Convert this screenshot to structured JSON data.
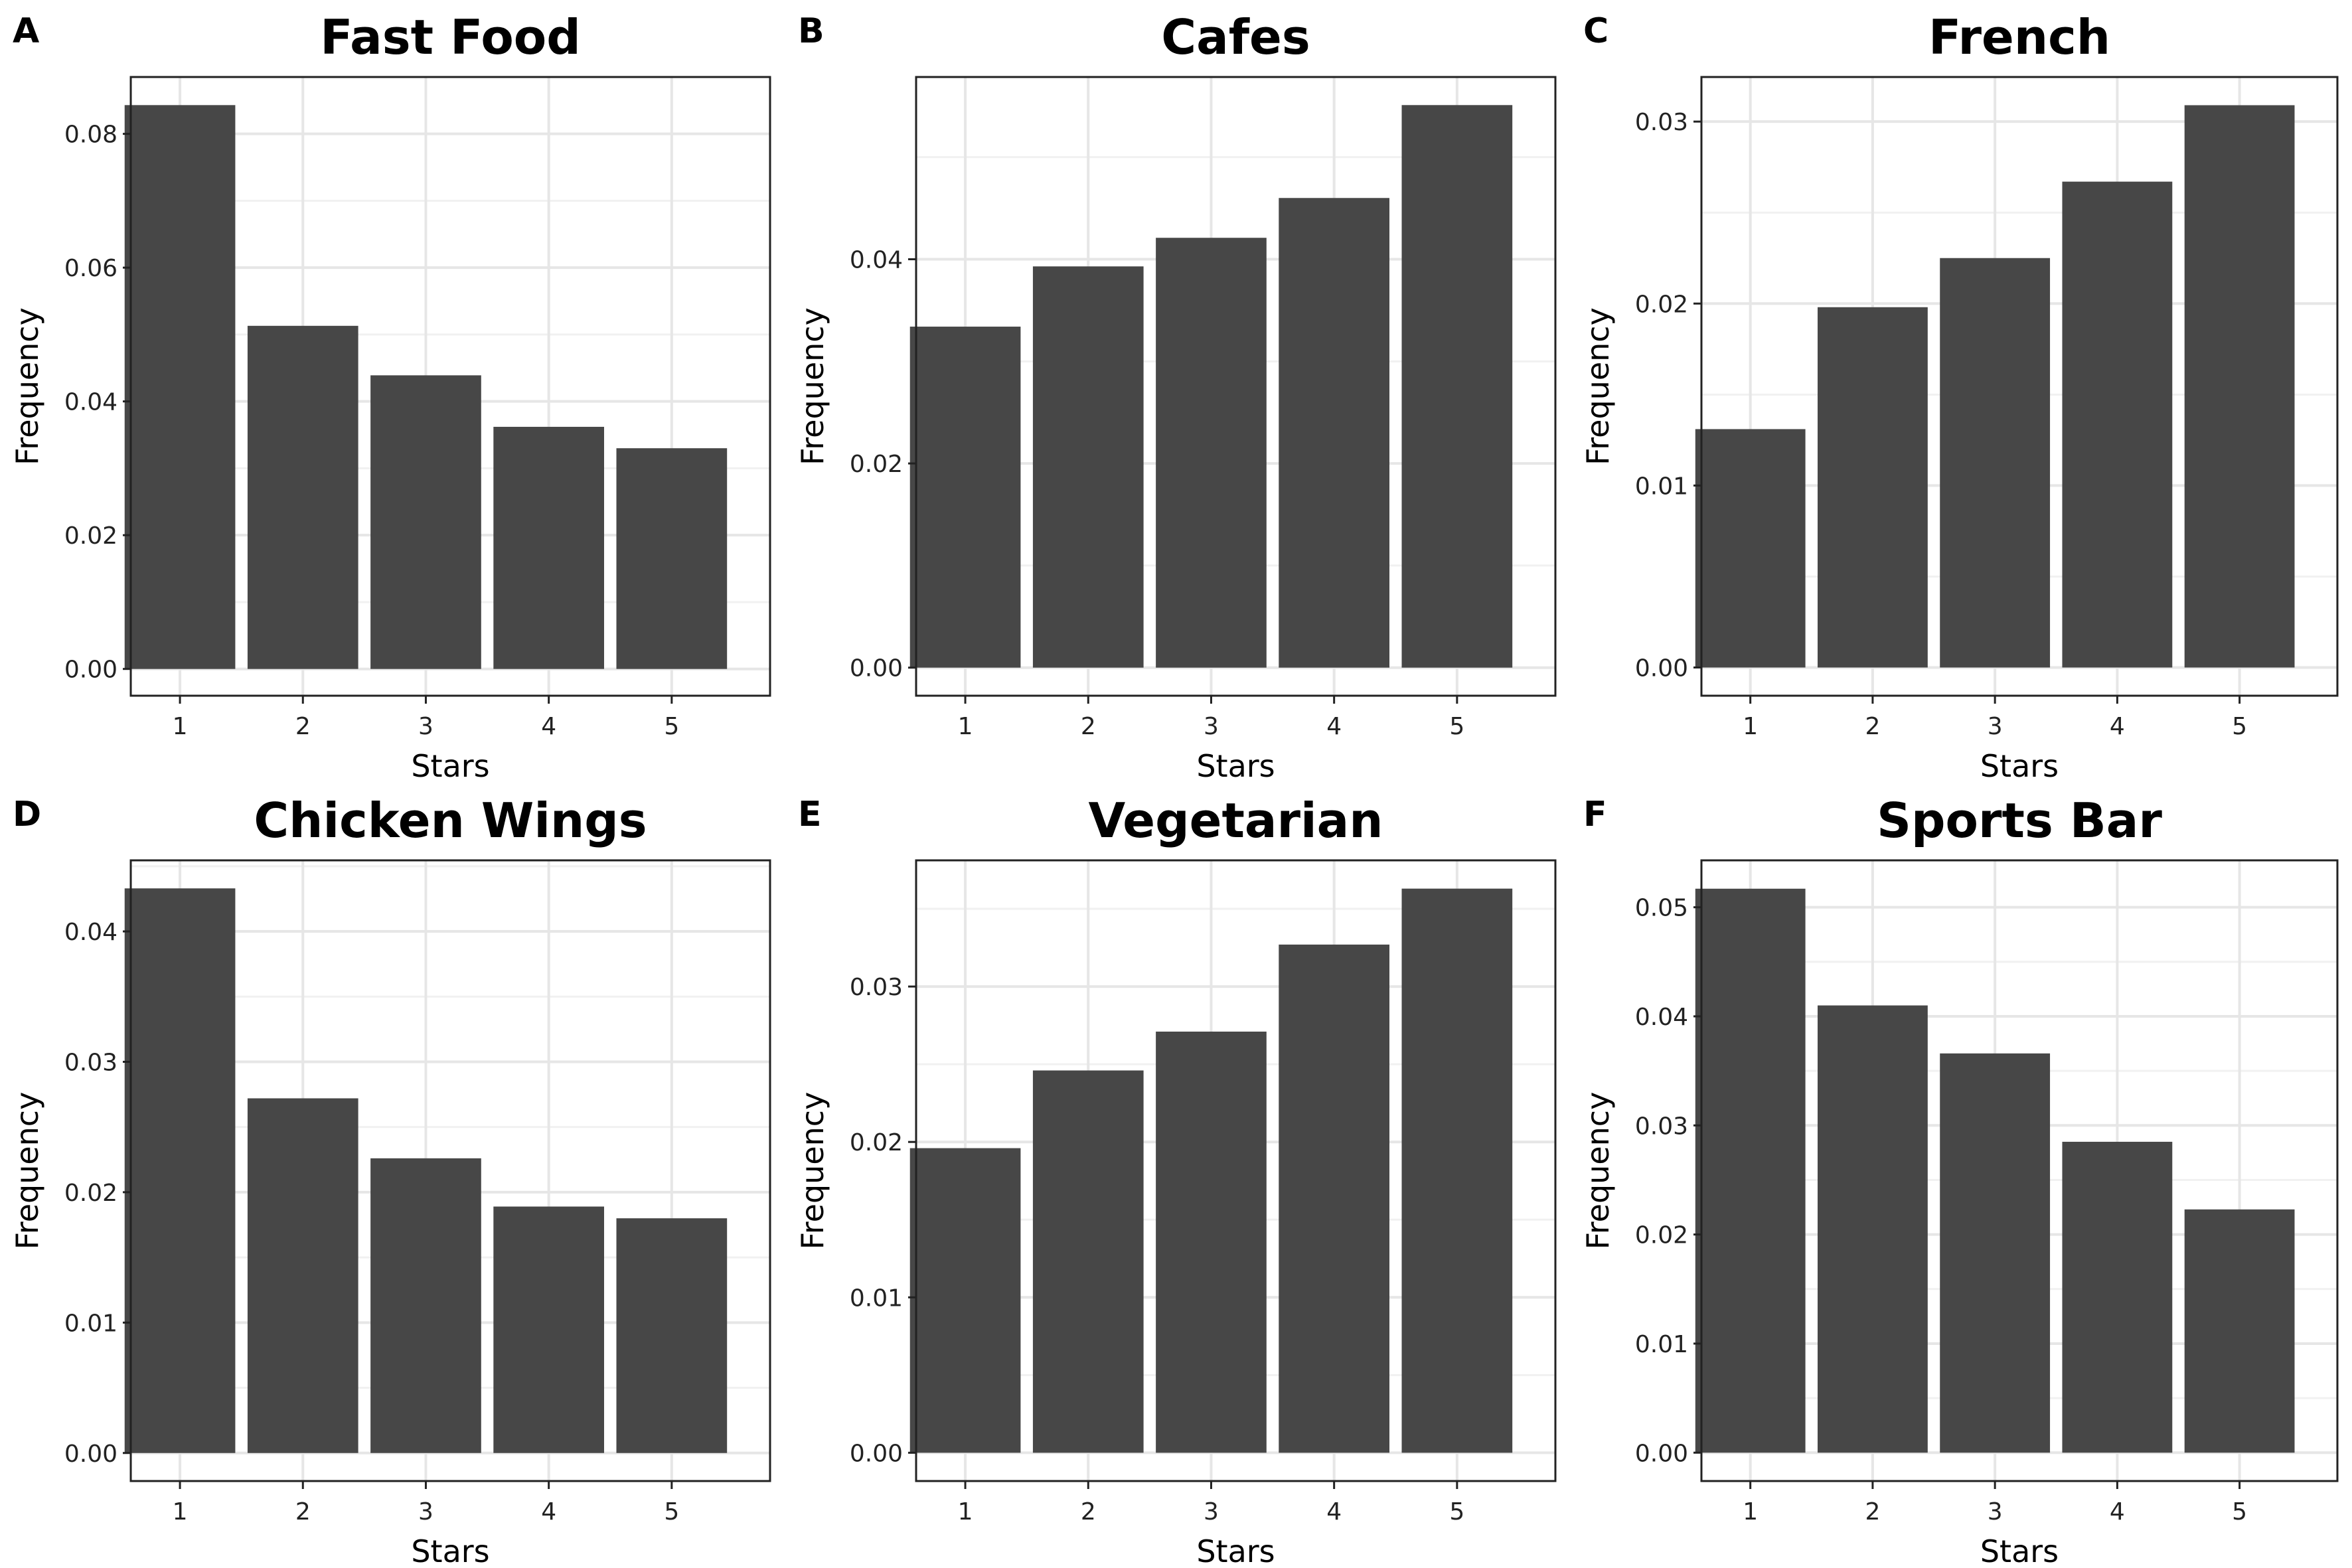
{
  "chart_data": [
    {
      "tag": "A",
      "type": "bar",
      "title": "Fast Food",
      "xlabel": "Stars",
      "ylabel": "Frequency",
      "categories": [
        "1",
        "2",
        "3",
        "4",
        "5"
      ],
      "values": [
        0.0843,
        0.0513,
        0.0439,
        0.0362,
        0.033
      ],
      "ylim": [
        -0.004,
        0.0885
      ],
      "yticks": [
        0.0,
        0.02,
        0.04,
        0.06,
        0.08
      ],
      "yticklabels": [
        "0.00",
        "0.02",
        "0.04",
        "0.06",
        "0.08"
      ],
      "grid": true,
      "bar_color": "#474747"
    },
    {
      "tag": "B",
      "type": "bar",
      "title": "Cafes",
      "xlabel": "Stars",
      "ylabel": "Frequency",
      "categories": [
        "1",
        "2",
        "3",
        "4",
        "5"
      ],
      "values": [
        0.0334,
        0.0393,
        0.0421,
        0.046,
        0.0551
      ],
      "ylim": [
        -0.00275,
        0.05785
      ],
      "yticks": [
        0.0,
        0.02,
        0.04
      ],
      "yticklabels": [
        "0.00",
        "0.02",
        "0.04"
      ],
      "grid": true,
      "bar_color": "#474747"
    },
    {
      "tag": "C",
      "type": "bar",
      "title": "French",
      "xlabel": "Stars",
      "ylabel": "Frequency",
      "categories": [
        "1",
        "2",
        "3",
        "4",
        "5"
      ],
      "values": [
        0.0131,
        0.0198,
        0.0225,
        0.0267,
        0.0309
      ],
      "ylim": [
        -0.00155,
        0.03245
      ],
      "yticks": [
        0.0,
        0.01,
        0.02,
        0.03
      ],
      "yticklabels": [
        "0.00",
        "0.01",
        "0.02",
        "0.03"
      ],
      "grid": true,
      "bar_color": "#474747"
    },
    {
      "tag": "D",
      "type": "bar",
      "title": "Chicken Wings",
      "xlabel": "Stars",
      "ylabel": "Frequency",
      "categories": [
        "1",
        "2",
        "3",
        "4",
        "5"
      ],
      "values": [
        0.0433,
        0.0272,
        0.0226,
        0.0189,
        0.018
      ],
      "ylim": [
        -0.00215,
        0.04545
      ],
      "yticks": [
        0.0,
        0.01,
        0.02,
        0.03,
        0.04
      ],
      "yticklabels": [
        "0.00",
        "0.01",
        "0.02",
        "0.03",
        "0.04"
      ],
      "grid": true,
      "bar_color": "#474747"
    },
    {
      "tag": "E",
      "type": "bar",
      "title": "Vegetarian",
      "xlabel": "Stars",
      "ylabel": "Frequency",
      "categories": [
        "1",
        "2",
        "3",
        "4",
        "5"
      ],
      "values": [
        0.0196,
        0.0246,
        0.0271,
        0.0327,
        0.0363
      ],
      "ylim": [
        -0.00182,
        0.03812
      ],
      "yticks": [
        0.0,
        0.01,
        0.02,
        0.03
      ],
      "yticklabels": [
        "0.00",
        "0.01",
        "0.02",
        "0.03"
      ],
      "grid": true,
      "bar_color": "#474747"
    },
    {
      "tag": "F",
      "type": "bar",
      "title": "Sports Bar",
      "xlabel": "Stars",
      "ylabel": "Frequency",
      "categories": [
        "1",
        "2",
        "3",
        "4",
        "5"
      ],
      "values": [
        0.0517,
        0.041,
        0.0366,
        0.0285,
        0.0223
      ],
      "ylim": [
        -0.0026,
        0.0543
      ],
      "yticks": [
        0.0,
        0.01,
        0.02,
        0.03,
        0.04,
        0.05
      ],
      "yticklabels": [
        "0.00",
        "0.01",
        "0.02",
        "0.03",
        "0.04",
        "0.05"
      ],
      "grid": true,
      "bar_color": "#474747"
    }
  ]
}
